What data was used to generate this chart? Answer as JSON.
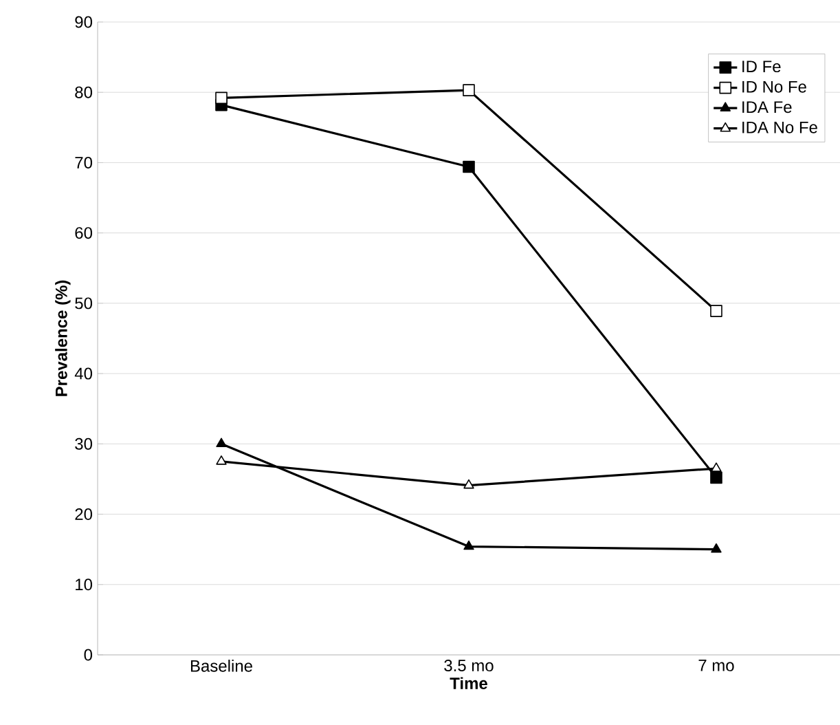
{
  "chart_data": {
    "type": "line",
    "xlabel": "Time",
    "ylabel": "Prevalence (%)",
    "categories": [
      "Baseline",
      "3.5 mo",
      "7 mo"
    ],
    "series": [
      {
        "name": "ID Fe",
        "color": "#000000",
        "marker": "square",
        "values": [
          78.2,
          69.4,
          25.2
        ]
      },
      {
        "name": "ID No Fe",
        "color": "#ffffff",
        "marker": "square",
        "values": [
          79.2,
          80.3,
          48.9
        ]
      },
      {
        "name": "IDA Fe",
        "color": "#000000",
        "marker": "triangle",
        "values": [
          30.0,
          15.4,
          15.0
        ]
      },
      {
        "name": "IDA No Fe",
        "color": "#ffffff",
        "marker": "triangle",
        "values": [
          27.5,
          24.1,
          26.5
        ]
      }
    ],
    "ylim": [
      0,
      90
    ],
    "yticks": [
      0,
      10,
      20,
      30,
      40,
      50,
      60,
      70,
      80,
      90
    ],
    "grid": "y",
    "legend": "top right",
    "line_style": "solid"
  }
}
